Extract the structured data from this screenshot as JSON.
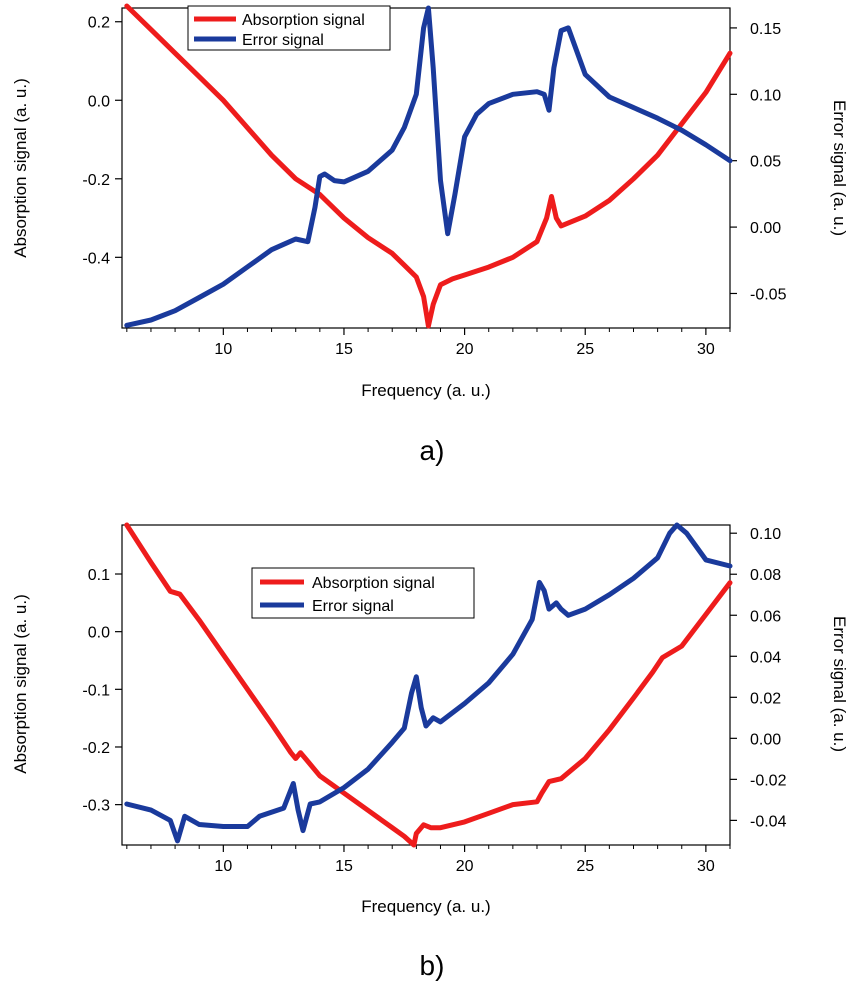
{
  "chart_data": [
    {
      "type": "line",
      "panel_label": "a)",
      "title": "",
      "xlabel": "Frequency (a. u.)",
      "ylabel_left": "Absorption signal (a. u.)",
      "ylabel_right": "Error signal (a. u.)",
      "xlim": [
        5.8,
        31
      ],
      "ylim_left": [
        -0.58,
        0.235
      ],
      "ylim_right": [
        -0.076,
        0.165
      ],
      "x_ticks": [
        10,
        15,
        20,
        25,
        30
      ],
      "y_left_ticks": [
        0.2,
        0.0,
        -0.2,
        -0.4
      ],
      "y_left_tick_labels": [
        "0.2",
        "0.0",
        "-0.2",
        "-0.4"
      ],
      "y_right_ticks": [
        0.15,
        0.1,
        0.05,
        0.0,
        -0.05
      ],
      "y_right_tick_labels": [
        "0.15",
        "0.10",
        "0.05",
        "0.00",
        "-0.05"
      ],
      "grid": false,
      "legend_position": "top-left",
      "series": [
        {
          "name": "Absorption signal",
          "axis": "left",
          "color": "#ee1c1c",
          "x": [
            6,
            7,
            8,
            9,
            10,
            11,
            12,
            13,
            13.5,
            14,
            15,
            16,
            17,
            17.5,
            18,
            18.3,
            18.5,
            18.7,
            19,
            19.5,
            20,
            21,
            22,
            23,
            23.4,
            23.6,
            23.8,
            24,
            25,
            26,
            27,
            28,
            29,
            30,
            31
          ],
          "values": [
            0.24,
            0.18,
            0.12,
            0.06,
            0.0,
            -0.07,
            -0.14,
            -0.2,
            -0.22,
            -0.24,
            -0.3,
            -0.35,
            -0.39,
            -0.42,
            -0.45,
            -0.5,
            -0.575,
            -0.52,
            -0.47,
            -0.455,
            -0.445,
            -0.425,
            -0.4,
            -0.36,
            -0.3,
            -0.245,
            -0.3,
            -0.32,
            -0.295,
            -0.255,
            -0.2,
            -0.14,
            -0.06,
            0.02,
            0.12
          ]
        },
        {
          "name": "Error signal",
          "axis": "right",
          "color": "#1a3a9c",
          "x": [
            6,
            7,
            8,
            9,
            10,
            11,
            12,
            12.5,
            13,
            13.5,
            13.8,
            14,
            14.2,
            14.6,
            15,
            16,
            17,
            17.5,
            18,
            18.3,
            18.5,
            18.7,
            19,
            19.3,
            19.6,
            20,
            20.5,
            21,
            22,
            23,
            23.3,
            23.5,
            23.7,
            24,
            24.3,
            25,
            26,
            27,
            28,
            29,
            30,
            31
          ],
          "values": [
            -0.074,
            -0.07,
            -0.063,
            -0.053,
            -0.043,
            -0.03,
            -0.017,
            -0.013,
            -0.009,
            -0.011,
            0.015,
            0.038,
            0.04,
            0.035,
            0.034,
            0.042,
            0.058,
            0.075,
            0.1,
            0.15,
            0.165,
            0.12,
            0.035,
            -0.005,
            0.025,
            0.068,
            0.085,
            0.093,
            0.1,
            0.102,
            0.1,
            0.088,
            0.12,
            0.148,
            0.15,
            0.115,
            0.098,
            0.09,
            0.082,
            0.073,
            0.062,
            0.05
          ]
        }
      ]
    },
    {
      "type": "line",
      "panel_label": "b)",
      "title": "",
      "xlabel": "Frequency (a. u.)",
      "ylabel_left": "Absorption signal (a. u.)",
      "ylabel_right": "Error signal (a. u.)",
      "xlim": [
        5.8,
        31
      ],
      "ylim_left": [
        -0.37,
        0.185
      ],
      "ylim_right": [
        -0.052,
        0.104
      ],
      "x_ticks": [
        10,
        15,
        20,
        25,
        30
      ],
      "y_left_ticks": [
        0.1,
        0.0,
        -0.1,
        -0.2,
        -0.3
      ],
      "y_left_tick_labels": [
        "0.1",
        "0.0",
        "-0.1",
        "-0.2",
        "-0.3"
      ],
      "y_right_ticks": [
        0.1,
        0.08,
        0.06,
        0.04,
        0.02,
        0.0,
        -0.02,
        -0.04
      ],
      "y_right_tick_labels": [
        "0.10",
        "0.08",
        "0.06",
        "0.04",
        "0.02",
        "0.00",
        "-0.02",
        "-0.04"
      ],
      "grid": false,
      "legend_position": "top-center",
      "series": [
        {
          "name": "Absorption signal",
          "axis": "left",
          "color": "#ee1c1c",
          "x": [
            6,
            7,
            7.8,
            8.2,
            9,
            10,
            11,
            12,
            12.8,
            13,
            13.2,
            13.4,
            14,
            15,
            16,
            17,
            17.5,
            17.9,
            18,
            18.3,
            18.6,
            19,
            20,
            21,
            22,
            23,
            23.2,
            23.5,
            24,
            25,
            26,
            27,
            27.8,
            28.2,
            29,
            30,
            31
          ],
          "values": [
            0.185,
            0.12,
            0.07,
            0.065,
            0.02,
            -0.04,
            -0.1,
            -0.16,
            -0.21,
            -0.22,
            -0.21,
            -0.22,
            -0.25,
            -0.28,
            -0.31,
            -0.34,
            -0.355,
            -0.37,
            -0.35,
            -0.335,
            -0.34,
            -0.34,
            -0.33,
            -0.315,
            -0.3,
            -0.295,
            -0.28,
            -0.26,
            -0.255,
            -0.22,
            -0.17,
            -0.115,
            -0.07,
            -0.045,
            -0.025,
            0.03,
            0.085
          ]
        },
        {
          "name": "Error signal",
          "axis": "right",
          "color": "#1a3a9c",
          "x": [
            6,
            7,
            7.8,
            8.1,
            8.4,
            9,
            10,
            11,
            11.5,
            12.5,
            12.9,
            13.1,
            13.3,
            13.6,
            14,
            15,
            16,
            17,
            17.5,
            17.8,
            18,
            18.2,
            18.4,
            18.7,
            19,
            20,
            21,
            22,
            22.8,
            23.1,
            23.3,
            23.5,
            23.8,
            24,
            24.3,
            25,
            26,
            27,
            28,
            28.5,
            28.8,
            29.2,
            30,
            31
          ],
          "values": [
            -0.032,
            -0.035,
            -0.04,
            -0.05,
            -0.038,
            -0.042,
            -0.043,
            -0.043,
            -0.038,
            -0.034,
            -0.022,
            -0.035,
            -0.045,
            -0.032,
            -0.031,
            -0.024,
            -0.015,
            -0.002,
            0.005,
            0.022,
            0.03,
            0.015,
            0.006,
            0.01,
            0.008,
            0.017,
            0.027,
            0.041,
            0.058,
            0.076,
            0.072,
            0.063,
            0.066,
            0.063,
            0.06,
            0.063,
            0.07,
            0.078,
            0.088,
            0.1,
            0.104,
            0.1,
            0.087,
            0.084
          ]
        }
      ]
    }
  ]
}
